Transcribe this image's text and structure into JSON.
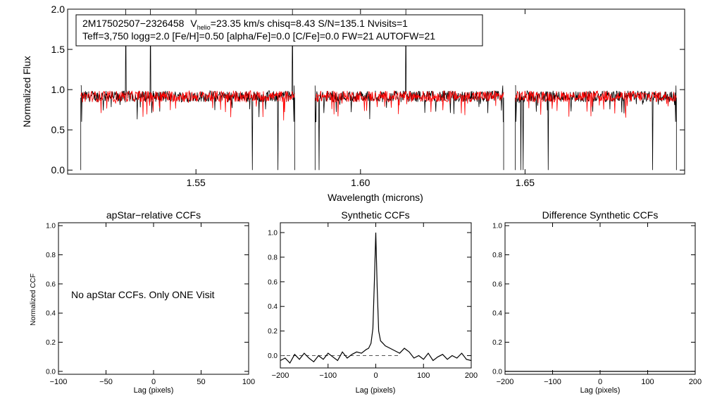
{
  "spectrum_panel": {
    "header_name": "2M17502507−2326458",
    "vhelio_label": "V",
    "vhelio_sub": "helio",
    "header_rest": "=23.35 km/s  chisq=8.43  S/N=135.1  Nvisits=1",
    "header_line2": "Teff=3,750 logg=2.0 [Fe/H]=0.50 [alpha/Fe]=0.0 [C/Fe]=0.0 FW=21 AUTOFW=21",
    "data_color": "#000000",
    "model_color": "#ff0000"
  },
  "ccf_panels": {
    "apstar_message": "No apStar CCFs.  Only ONE Visit"
  },
  "chart_data": [
    {
      "id": "spectrum",
      "type": "line",
      "title": "",
      "xlabel": "Wavelength (microns)",
      "ylabel": "Normalized Flux",
      "xlim": [
        1.511,
        1.6985
      ],
      "ylim": [
        -0.05,
        2.0
      ],
      "xticks": [
        1.55,
        1.6,
        1.65
      ],
      "xtick_labels": [
        "1.55",
        "1.60",
        "1.65"
      ],
      "yticks": [
        0.0,
        0.5,
        1.0,
        1.5,
        2.0
      ],
      "ytick_labels": [
        "0.0",
        "0.5",
        "1.0",
        "1.5",
        "2.0"
      ],
      "chips": [
        [
          1.515,
          1.58
        ],
        [
          1.5862,
          1.6435
        ],
        [
          1.647,
          1.696
        ]
      ],
      "series": [
        {
          "name": "observed",
          "color": "#000000",
          "level": 0.93,
          "noise": 0.07
        },
        {
          "name": "model",
          "color": "#ff0000",
          "level": 0.93,
          "noise": 0.07
        }
      ]
    },
    {
      "id": "apstar",
      "type": "line",
      "title": "apStar−relative CCFs",
      "xlabel": "Lag (pixels)",
      "ylabel": "Normalized CCF",
      "xlim": [
        -100,
        100
      ],
      "ylim": [
        -0.02,
        1.02
      ],
      "xticks": [
        -100,
        -50,
        0,
        50,
        100
      ],
      "xtick_labels": [
        "−100",
        "−50",
        "0",
        "50",
        "100"
      ],
      "yticks": [
        0.0,
        0.2,
        0.4,
        0.6,
        0.8,
        1.0
      ],
      "ytick_labels": [
        "0.0",
        "0.2",
        "0.4",
        "0.6",
        "0.8",
        "1.0"
      ],
      "series": []
    },
    {
      "id": "synthetic",
      "type": "line",
      "title": "Synthetic CCFs",
      "xlabel": "Lag (pixels)",
      "ylabel": "",
      "xlim": [
        -200,
        200
      ],
      "ylim": [
        -0.1,
        1.08
      ],
      "xticks": [
        -200,
        -100,
        0,
        100,
        200
      ],
      "xtick_labels": [
        "−200",
        "−100",
        "0",
        "100",
        "200"
      ],
      "yticks": [
        0.0,
        0.2,
        0.4,
        0.6,
        0.8,
        1.0
      ],
      "ytick_labels": [
        "0.0",
        "0.2",
        "0.4",
        "0.6",
        "0.8",
        "1.0"
      ],
      "baseline": {
        "y": 0.0,
        "x_range": [
          -200,
          50
        ],
        "style": "dashed"
      },
      "series": [
        {
          "name": "synthetic_ccf",
          "color": "#000000",
          "x": [
            -200,
            -190,
            -180,
            -170,
            -160,
            -150,
            -140,
            -130,
            -120,
            -110,
            -100,
            -90,
            -80,
            -70,
            -60,
            -50,
            -40,
            -30,
            -20,
            -15,
            -10,
            -6,
            -3,
            0,
            3,
            6,
            10,
            15,
            20,
            30,
            40,
            50,
            60,
            70,
            80,
            90,
            100,
            110,
            120,
            130,
            140,
            150,
            160,
            170,
            180,
            190,
            200
          ],
          "y": [
            -0.04,
            -0.02,
            -0.06,
            0.01,
            -0.03,
            0.02,
            -0.02,
            -0.05,
            0.0,
            -0.03,
            0.02,
            -0.01,
            -0.04,
            0.03,
            -0.02,
            0.01,
            0.03,
            0.02,
            0.05,
            0.06,
            0.1,
            0.22,
            0.6,
            1.0,
            0.55,
            0.2,
            0.12,
            0.1,
            0.08,
            0.06,
            0.04,
            0.02,
            0.06,
            0.03,
            -0.02,
            0.0,
            -0.03,
            0.02,
            -0.04,
            -0.01,
            0.01,
            -0.03,
            0.0,
            -0.02,
            0.02,
            -0.03,
            -0.04
          ]
        }
      ]
    },
    {
      "id": "difference",
      "type": "line",
      "title": "Difference Synthetic CCFs",
      "xlabel": "Lag (pixels)",
      "ylabel": "",
      "xlim": [
        -200,
        200
      ],
      "ylim": [
        -0.02,
        1.02
      ],
      "xticks": [
        -200,
        -100,
        0,
        100,
        200
      ],
      "xtick_labels": [
        "−200",
        "−100",
        "0",
        "100",
        "200"
      ],
      "yticks": [
        0.0,
        0.2,
        0.4,
        0.6,
        0.8,
        1.0
      ],
      "ytick_labels": [
        "0.0",
        "0.2",
        "0.4",
        "0.6",
        "0.8",
        "1.0"
      ],
      "series": [
        {
          "name": "difference_ccf",
          "color": "#000000",
          "x": [
            -200,
            200
          ],
          "y": [
            0.0,
            0.0
          ]
        }
      ]
    }
  ]
}
